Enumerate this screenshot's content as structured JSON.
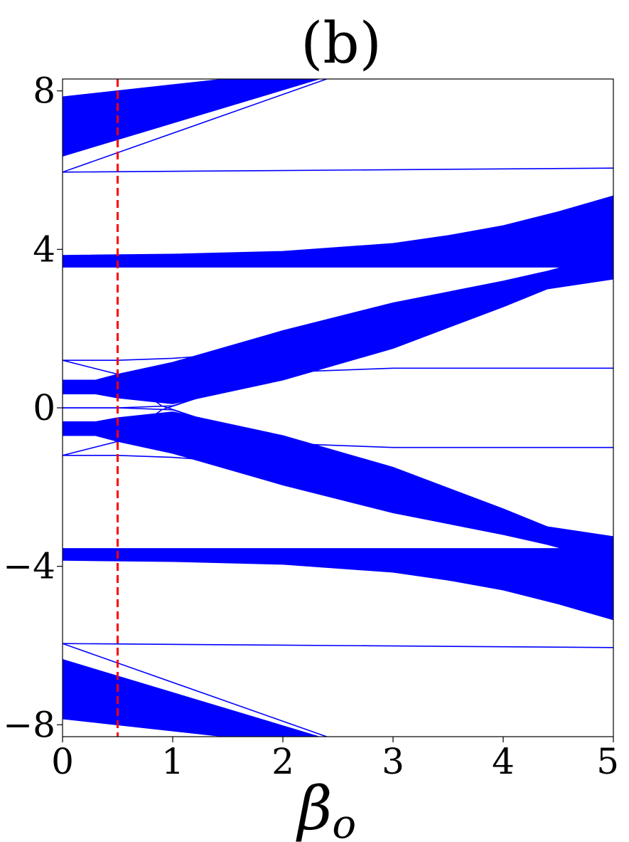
{
  "chart_data": {
    "type": "line",
    "title": "(b)",
    "xlabel": "β",
    "xlabel_subscript": "o",
    "ylabel": "",
    "xlim": [
      0,
      5
    ],
    "ylim": [
      -8.3,
      8.3
    ],
    "xticks": [
      0,
      1,
      2,
      3,
      4,
      5
    ],
    "xtick_labels": [
      "0",
      "1",
      "2",
      "3",
      "4",
      "5"
    ],
    "yticks": [
      -8,
      -4,
      0,
      4,
      8
    ],
    "ytick_labels": [
      "−8",
      "−4",
      "0",
      "4",
      "8"
    ],
    "grid": false,
    "legend": "none",
    "line_color": "#0000ff",
    "marker_line": {
      "x": 0.5,
      "color": "#ff0000",
      "style": "dashed"
    },
    "bands": [
      {
        "name": "band-top",
        "x": [
          0,
          2.45
        ],
        "upper": [
          7.85,
          8.6
        ],
        "lower": [
          6.35,
          8.4
        ]
      },
      {
        "name": "band-upper-flat",
        "x": [
          0,
          1,
          2,
          3,
          3.5,
          4,
          4.5,
          5
        ],
        "upper": [
          3.85,
          3.88,
          3.95,
          4.15,
          4.35,
          4.6,
          4.95,
          5.35
        ],
        "lower": [
          3.55,
          3.55,
          3.55,
          3.55,
          3.55,
          3.55,
          3.55,
          3.55
        ]
      },
      {
        "name": "band-mid-up",
        "x": [
          0,
          0.3,
          0.5,
          1,
          2,
          3,
          4,
          4.4,
          5
        ],
        "upper": [
          0.7,
          0.7,
          0.85,
          1.15,
          1.95,
          2.65,
          3.2,
          3.45,
          3.9
        ],
        "lower": [
          0.35,
          0.35,
          0.25,
          0.1,
          0.7,
          1.5,
          2.55,
          3.0,
          3.25
        ]
      },
      {
        "name": "band-mid-down",
        "x": [
          0,
          0.3,
          0.5,
          1,
          2,
          3,
          4,
          4.4,
          5
        ],
        "upper": [
          -0.35,
          -0.35,
          -0.25,
          -0.1,
          -0.7,
          -1.5,
          -2.55,
          -3.0,
          -3.25
        ],
        "lower": [
          -0.7,
          -0.7,
          -0.85,
          -1.15,
          -1.95,
          -2.65,
          -3.2,
          -3.45,
          -3.9
        ]
      },
      {
        "name": "band-lower-flat",
        "x": [
          0,
          1,
          2,
          3,
          3.5,
          4,
          4.5,
          5
        ],
        "upper": [
          -3.55,
          -3.55,
          -3.55,
          -3.55,
          -3.55,
          -3.55,
          -3.55,
          -3.55
        ],
        "lower": [
          -3.85,
          -3.88,
          -3.95,
          -4.15,
          -4.35,
          -4.6,
          -4.95,
          -5.35
        ]
      },
      {
        "name": "band-bottom",
        "x": [
          0,
          2.45
        ],
        "upper": [
          -6.35,
          -8.4
        ],
        "lower": [
          -7.85,
          -8.6
        ]
      }
    ],
    "curves": [
      {
        "name": "edge-flat-pos-6",
        "x": [
          0,
          5
        ],
        "y": [
          5.95,
          6.05
        ]
      },
      {
        "name": "edge-flat-neg-6",
        "x": [
          0,
          5
        ],
        "y": [
          -5.95,
          -6.05
        ]
      },
      {
        "name": "edge-rising-top",
        "x": [
          0,
          2.5
        ],
        "y": [
          5.95,
          8.4
        ]
      },
      {
        "name": "edge-falling-bottom",
        "x": [
          0,
          2.5
        ],
        "y": [
          -5.95,
          -8.4
        ]
      },
      {
        "name": "edge-flat-pos-1",
        "x": [
          0,
          0.5,
          1,
          1.5,
          2,
          3,
          4,
          5
        ],
        "y": [
          1.2,
          1.2,
          1.25,
          1.35,
          1.6,
          2.3,
          3.1,
          3.6
        ]
      },
      {
        "name": "edge-flat-neg-1",
        "x": [
          0,
          0.5,
          1,
          1.5,
          2,
          3,
          4,
          5
        ],
        "y": [
          -1.2,
          -1.2,
          -1.25,
          -1.35,
          -1.6,
          -2.3,
          -3.1,
          -3.6
        ]
      },
      {
        "name": "edge-cross-down",
        "x": [
          0,
          0.5,
          0.9,
          1.5,
          2,
          3,
          4,
          5
        ],
        "y": [
          1.2,
          0.85,
          0.05,
          -0.5,
          -0.9,
          -1.0,
          -1.0,
          -1.0
        ]
      },
      {
        "name": "edge-cross-up",
        "x": [
          0,
          0.5,
          0.9,
          1.5,
          2,
          3,
          4,
          5
        ],
        "y": [
          -1.2,
          -0.85,
          -0.05,
          0.5,
          0.9,
          1.0,
          1.0,
          1.0
        ]
      },
      {
        "name": "edge-zero-up",
        "x": [
          0,
          0.5,
          1,
          2,
          3,
          4,
          5
        ],
        "y": [
          0,
          0,
          0.05,
          0.95,
          1.9,
          2.9,
          3.6
        ]
      },
      {
        "name": "edge-zero-down",
        "x": [
          0,
          0.5,
          1,
          2,
          3,
          4,
          5
        ],
        "y": [
          0,
          0,
          -0.05,
          -0.95,
          -1.9,
          -2.9,
          -3.6
        ]
      }
    ]
  }
}
